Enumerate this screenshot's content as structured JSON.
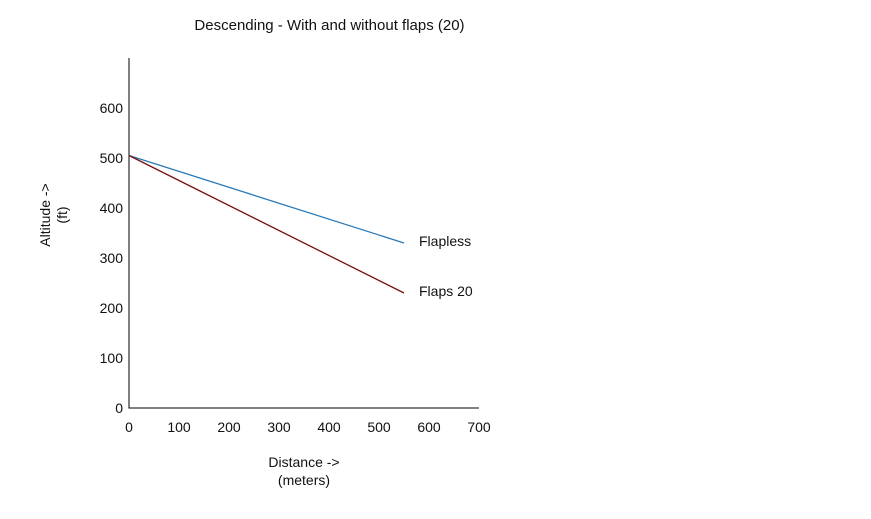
{
  "chart_data": {
    "type": "line",
    "title": "Descending - With and without flaps (20)",
    "ylabel_lines": [
      "Altitude ->",
      "(ft)"
    ],
    "xlabel_lines": [
      "Distance ->",
      "(meters)"
    ],
    "xlim": [
      0,
      700
    ],
    "ylim": [
      0,
      700
    ],
    "xticks": [
      0,
      100,
      200,
      300,
      400,
      500,
      600,
      700
    ],
    "yticks": [
      0,
      100,
      200,
      300,
      400,
      500,
      600
    ],
    "grid": false,
    "series": [
      {
        "name": "Flapless",
        "color": "#2a7ab8",
        "x": [
          0,
          550
        ],
        "y": [
          505,
          330
        ]
      },
      {
        "name": "Flaps 20",
        "color": "#7a1010",
        "x": [
          0,
          550
        ],
        "y": [
          505,
          230
        ]
      }
    ]
  }
}
